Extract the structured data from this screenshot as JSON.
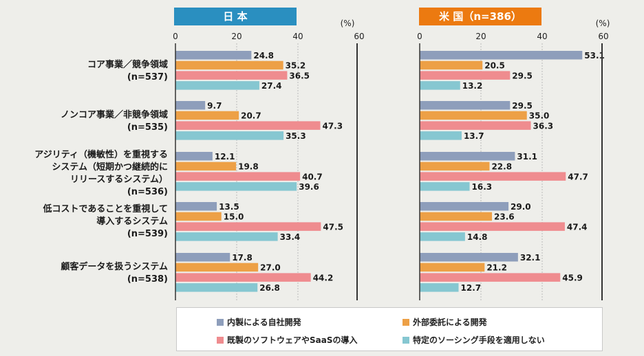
{
  "chart_data": [
    {
      "type": "bar",
      "title": "日 本",
      "unit": "(%)",
      "xlim": [
        0,
        60
      ],
      "ticks": [
        "0",
        "20",
        "40",
        "60"
      ],
      "grid": true,
      "categories": [
        [
          "コア事業／競争領域",
          "(n=537)"
        ],
        [
          "ノンコア事業／非競争領域",
          "(n=535)"
        ],
        [
          "アジリティ（機敏性）を重視する",
          "システム（短期かつ継続的に",
          "リリースするシステム）",
          "(n=536)"
        ],
        [
          "低コストであることを重視して",
          "導入するシステム",
          "(n=539)"
        ],
        [
          "顧客データを扱うシステム",
          "(n=538)"
        ]
      ],
      "series": [
        {
          "name": "内製による自社開発",
          "color": "#8e9ebb",
          "values": [
            24.8,
            9.7,
            12.1,
            13.5,
            17.8
          ]
        },
        {
          "name": "外部委託による開発",
          "color": "#eda046",
          "values": [
            35.2,
            20.7,
            19.8,
            15.0,
            27.0
          ]
        },
        {
          "name": "既製のソフトウェアやSaaSの導入",
          "color": "#ef8c8f",
          "values": [
            36.5,
            47.3,
            40.7,
            47.5,
            44.2
          ]
        },
        {
          "name": "特定のソーシング手段を適用しない",
          "color": "#86c7d1",
          "values": [
            27.4,
            35.3,
            39.6,
            33.4,
            26.8
          ]
        }
      ],
      "labels": [
        [
          "24.8",
          "35.2",
          "36.5",
          "27.4"
        ],
        [
          "9.7",
          "20.7",
          "47.3",
          "35.3"
        ],
        [
          "12.1",
          "19.8",
          "40.7",
          "39.6"
        ],
        [
          "13.5",
          "15.0",
          "47.5",
          "33.4"
        ],
        [
          "17.8",
          "27.0",
          "44.2",
          "26.8"
        ]
      ]
    },
    {
      "type": "bar",
      "title": "米 国（n=386）",
      "unit": "(%)",
      "xlim": [
        0,
        60
      ],
      "ticks": [
        "0",
        "20",
        "40",
        "60"
      ],
      "grid": true,
      "series": [
        {
          "name": "内製による自社開発",
          "values": [
            53.1,
            29.5,
            31.1,
            29.0,
            32.1
          ]
        },
        {
          "name": "外部委託による開発",
          "values": [
            20.5,
            35.0,
            22.8,
            23.6,
            21.2
          ]
        },
        {
          "name": "既製のソフトウェアやSaaSの導入",
          "values": [
            29.5,
            36.3,
            47.7,
            47.4,
            45.9
          ]
        },
        {
          "name": "特定のソーシング手段を適用しない",
          "values": [
            13.2,
            13.7,
            16.3,
            14.8,
            12.7
          ]
        }
      ],
      "labels": [
        [
          "53.1",
          "20.5",
          "29.5",
          "13.2"
        ],
        [
          "29.5",
          "35.0",
          "36.3",
          "13.7"
        ],
        [
          "31.1",
          "22.8",
          "47.7",
          "16.3"
        ],
        [
          "29.0",
          "23.6",
          "47.4",
          "14.8"
        ],
        [
          "32.1",
          "21.2",
          "45.9",
          "12.7"
        ]
      ]
    }
  ],
  "colors": {
    "japan_title_bg": "#2a8fc0",
    "us_title_bg": "#ec7a10",
    "grid": "#bbbbbb",
    "axis": "#333333"
  },
  "legend": {
    "placement": "bottom",
    "items": [
      {
        "label": "内製による自社開発",
        "color": "#8e9ebb"
      },
      {
        "label": "外部委託による開発",
        "color": "#eda046"
      },
      {
        "label": "既製のソフトウェアやSaaSの導入",
        "color": "#ef8c8f"
      },
      {
        "label": "特定のソーシング手段を適用しない",
        "color": "#86c7d1"
      }
    ]
  }
}
